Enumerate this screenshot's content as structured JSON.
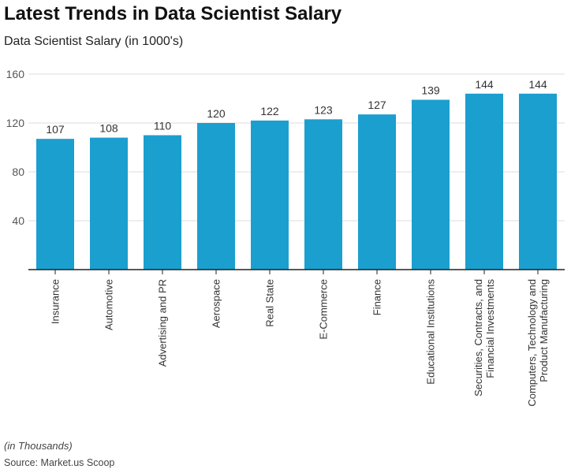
{
  "chart_data": {
    "type": "bar",
    "title": "Latest Trends in Data Scientist Salary",
    "subtitle": "Data Scientist Salary (in 1000's)",
    "categories": [
      "Insurance",
      "Automotive",
      "Advertising and PR",
      "Aerospace",
      "Real State",
      "E-Commerce",
      "Finance",
      "Educational Institutions",
      "Securities, Contracts, and\nFinancial Investments",
      "Computers, Technology and\nProduct Manufacturing"
    ],
    "values": [
      107,
      108,
      110,
      120,
      122,
      123,
      127,
      139,
      144,
      144
    ],
    "ylim": [
      0,
      160
    ],
    "yticks": [
      40,
      80,
      120,
      160
    ],
    "xlabel": "",
    "ylabel": "",
    "grid": true,
    "bar_color": "#1b9fcf",
    "note": "(in Thousands)",
    "source": "Source: Market.us Scoop"
  }
}
